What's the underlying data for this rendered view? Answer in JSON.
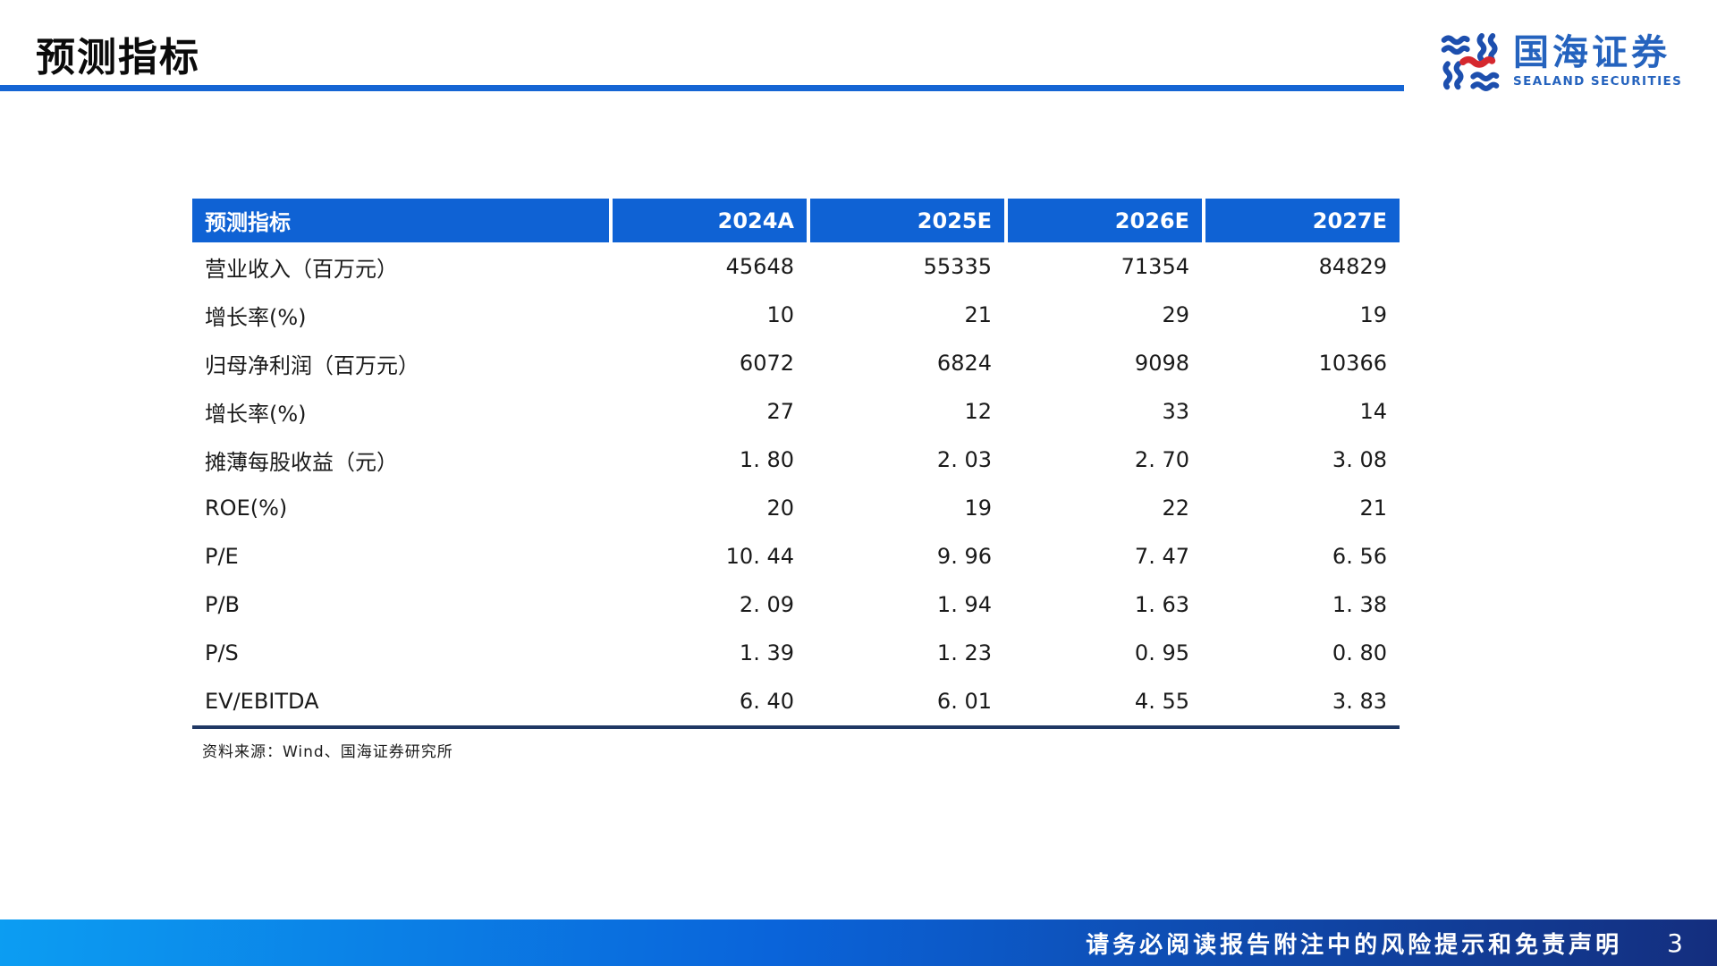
{
  "slide": {
    "title": "预测指标",
    "source_note": "资料来源：Wind、国海证券研究所",
    "footer_notice": "请务必阅读报告附注中的风险提示和免责声明",
    "page_number": "3"
  },
  "logo": {
    "name_cn": "国海证券",
    "name_en": "SEALAND SECURITIES",
    "icon": "sealand-wave-seal-icon"
  },
  "colors": {
    "accent_blue": "#0F62D4",
    "title_rule_blue": "#1565D4",
    "table_header_bg": "#0F62D4",
    "table_header_text": "#FFFFFF",
    "table_bottom_border": "#1F3864",
    "logo_blue": "#2563BE",
    "logo_red": "#D5282E",
    "footer_gradient_left": "#0C9DF2",
    "footer_gradient_mid": "#0A64DA",
    "footer_gradient_right": "#142E7E",
    "footer_text": "#FFFFFF"
  },
  "table": {
    "header": [
      "预测指标",
      "2024A",
      "2025E",
      "2026E",
      "2027E"
    ],
    "rows": [
      {
        "label": "营业收入（百万元）",
        "values": [
          "45648",
          "55335",
          "71354",
          "84829"
        ]
      },
      {
        "label": "增长率(%)",
        "values": [
          "10",
          "21",
          "29",
          "19"
        ]
      },
      {
        "label": "归母净利润（百万元）",
        "values": [
          "6072",
          "6824",
          "9098",
          "10366"
        ]
      },
      {
        "label": "增长率(%)",
        "values": [
          "27",
          "12",
          "33",
          "14"
        ]
      },
      {
        "label": "摊薄每股收益（元）",
        "values": [
          "1. 80",
          "2. 03",
          "2. 70",
          "3. 08"
        ]
      },
      {
        "label": "ROE(%)",
        "values": [
          "20",
          "19",
          "22",
          "21"
        ]
      },
      {
        "label": "P/E",
        "values": [
          "10. 44",
          "9. 96",
          "7. 47",
          "6. 56"
        ]
      },
      {
        "label": "P/B",
        "values": [
          "2. 09",
          "1. 94",
          "1. 63",
          "1. 38"
        ]
      },
      {
        "label": "P/S",
        "values": [
          "1. 39",
          "1. 23",
          "0. 95",
          "0. 80"
        ]
      },
      {
        "label": "EV/EBITDA",
        "values": [
          "6. 40",
          "6. 01",
          "4. 55",
          "3. 83"
        ]
      }
    ]
  },
  "chart_data": {
    "type": "table",
    "title": "预测指标",
    "categories": [
      "2024A",
      "2025E",
      "2026E",
      "2027E"
    ],
    "series": [
      {
        "name": "营业收入（百万元）",
        "values": [
          45648,
          55335,
          71354,
          84829
        ]
      },
      {
        "name": "增长率(%)",
        "values": [
          10,
          21,
          29,
          19
        ]
      },
      {
        "name": "归母净利润（百万元）",
        "values": [
          6072,
          6824,
          9098,
          10366
        ]
      },
      {
        "name": "增长率(%)",
        "values": [
          27,
          12,
          33,
          14
        ]
      },
      {
        "name": "摊薄每股收益（元）",
        "values": [
          1.8,
          2.03,
          2.7,
          3.08
        ]
      },
      {
        "name": "ROE(%)",
        "values": [
          20,
          19,
          22,
          21
        ]
      },
      {
        "name": "P/E",
        "values": [
          10.44,
          9.96,
          7.47,
          6.56
        ]
      },
      {
        "name": "P/B",
        "values": [
          2.09,
          1.94,
          1.63,
          1.38
        ]
      },
      {
        "name": "P/S",
        "values": [
          1.39,
          1.23,
          0.95,
          0.8
        ]
      },
      {
        "name": "EV/EBITDA",
        "values": [
          6.4,
          6.01,
          4.55,
          3.83
        ]
      }
    ]
  }
}
